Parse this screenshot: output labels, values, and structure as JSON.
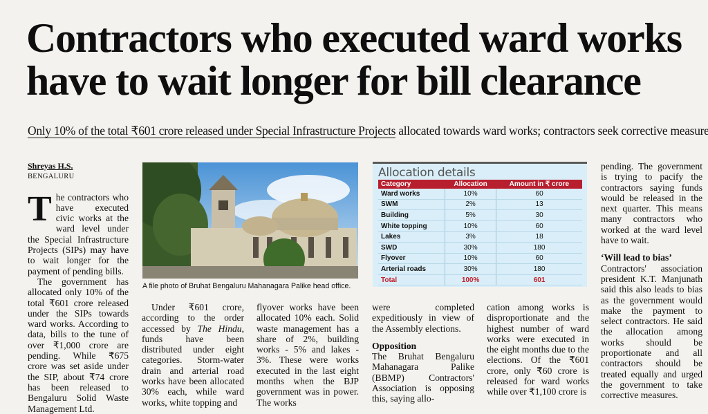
{
  "headline": {
    "line1": "Contractors who executed ward works",
    "line2": "have to wait longer for bill clearance"
  },
  "subhead": {
    "part1": "Only 10% of the total ₹601 crore released under Special Infrastructure Projects",
    "part2": " allocated towards ward works; contractors seek corrective measures"
  },
  "byline": "Shreyas H.S.",
  "dateline": "BENGALURU",
  "col1": {
    "dropcap": "T",
    "p1": "he contractors who have executed civic works at the ward level under the Special Infrastructure Projects (SIPs) may have to wait longer for the payment of pending bills.",
    "p2": "The government has allocated only 10% of the total ₹601 crore released under the SIPs towards ward works. According to data, bills to the tune of over ₹1,000 crore are pending. While ₹675 crore was set aside under the SIP, about ₹74 crore has been released to Bengaluru Solid Waste Management Ltd."
  },
  "col2": {
    "p1_a": "Under ₹601 crore, according to the order accessed by ",
    "p1_em": "The Hindu",
    "p1_b": ", funds have been distributed under eight categories. Storm-water drain and arterial road works have been allocated 30% each, while ward works, white topping and"
  },
  "col3": {
    "p1": "flyover works have been allocated 10% each. Solid waste management has a share of 2%, building works - 5% and lakes - 3%. These were works executed in the last eight months when the BJP government was in power. The works"
  },
  "col4": {
    "p1": "were completed expeditiously in view of the Assembly elections.",
    "heading": "Opposition",
    "p2": "The Bruhat Bengaluru Mahanagara Palike (BBMP) Contractors' Association is opposing this, saying allo-"
  },
  "col5": {
    "p1": "cation among works is disproportionate and the highest number of ward works were executed in the eight months due to the elections. Of the ₹601 crore, only ₹60 crore is released for ward works while over ₹1,100 crore is"
  },
  "col6": {
    "p1": "pending. The government is trying to pacify the contractors saying funds would be released in the next quarter. This means many contractors who worked at the ward level have to wait.",
    "heading": "‘Will lead to bias’",
    "p2": "Contractors' association president K.T. Manjunath said this also leads to bias as the government would make the payment to select contractors. He said the allocation among works should be proportionate and all contractors should be treated equally and urged the government to take corrective measures."
  },
  "photo": {
    "caption": "A file photo of Bruhat Bengaluru Mahanagara Palike head office."
  },
  "table": {
    "title": "Allocation details",
    "headers": [
      "Category",
      "Allocation",
      "Amount in ₹ crore"
    ],
    "rows": [
      [
        "Ward works",
        "10%",
        "60"
      ],
      [
        "SWM",
        "2%",
        "13"
      ],
      [
        "Building",
        "5%",
        "30"
      ],
      [
        "White topping",
        "10%",
        "60"
      ],
      [
        "Lakes",
        "3%",
        "18"
      ],
      [
        "SWD",
        "30%",
        "180"
      ],
      [
        "Flyover",
        "10%",
        "60"
      ],
      [
        "Arterial roads",
        "30%",
        "180"
      ]
    ],
    "total": [
      "Total",
      "100%",
      "601"
    ]
  },
  "colors": {
    "header_red": "#b81f2e",
    "table_bg": "#d9eef8",
    "total_red": "#c11d2a"
  }
}
